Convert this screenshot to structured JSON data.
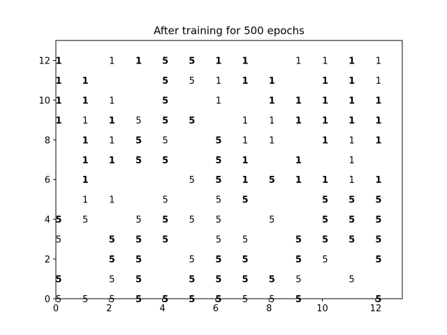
{
  "chart_data": {
    "type": "scatter",
    "title": "After training for 500 epochs",
    "xlabel": "",
    "ylabel": "",
    "xlim": [
      0,
      13
    ],
    "ylim": [
      0,
      13
    ],
    "xticks": [
      "0",
      "2",
      "4",
      "6",
      "8",
      "10",
      "12"
    ],
    "yticks": [
      "0",
      "2",
      "4",
      "6",
      "8",
      "10",
      "12"
    ],
    "grid": false,
    "points": [
      {
        "x": 0,
        "y": 12,
        "label": "1",
        "bold": true
      },
      {
        "x": 2,
        "y": 12,
        "label": "1",
        "bold": false
      },
      {
        "x": 3,
        "y": 12,
        "label": "1",
        "bold": true
      },
      {
        "x": 4,
        "y": 12,
        "label": "5",
        "bold": true
      },
      {
        "x": 5,
        "y": 12,
        "label": "5",
        "bold": true
      },
      {
        "x": 6,
        "y": 12,
        "label": "1",
        "bold": true
      },
      {
        "x": 7,
        "y": 12,
        "label": "1",
        "bold": true
      },
      {
        "x": 9,
        "y": 12,
        "label": "1",
        "bold": false
      },
      {
        "x": 10,
        "y": 12,
        "label": "1",
        "bold": false
      },
      {
        "x": 11,
        "y": 12,
        "label": "1",
        "bold": true
      },
      {
        "x": 12,
        "y": 12,
        "label": "1",
        "bold": false
      },
      {
        "x": 0,
        "y": 11,
        "label": "1",
        "bold": true
      },
      {
        "x": 1,
        "y": 11,
        "label": "1",
        "bold": true
      },
      {
        "x": 4,
        "y": 11,
        "label": "5",
        "bold": true
      },
      {
        "x": 5,
        "y": 11,
        "label": "5",
        "bold": false
      },
      {
        "x": 6,
        "y": 11,
        "label": "1",
        "bold": false
      },
      {
        "x": 7,
        "y": 11,
        "label": "1",
        "bold": true
      },
      {
        "x": 8,
        "y": 11,
        "label": "1",
        "bold": true
      },
      {
        "x": 10,
        "y": 11,
        "label": "1",
        "bold": true
      },
      {
        "x": 11,
        "y": 11,
        "label": "1",
        "bold": true
      },
      {
        "x": 12,
        "y": 11,
        "label": "1",
        "bold": false
      },
      {
        "x": 0,
        "y": 10,
        "label": "1",
        "bold": true
      },
      {
        "x": 1,
        "y": 10,
        "label": "1",
        "bold": true
      },
      {
        "x": 2,
        "y": 10,
        "label": "1",
        "bold": false
      },
      {
        "x": 4,
        "y": 10,
        "label": "5",
        "bold": true
      },
      {
        "x": 6,
        "y": 10,
        "label": "1",
        "bold": false
      },
      {
        "x": 8,
        "y": 10,
        "label": "1",
        "bold": true
      },
      {
        "x": 9,
        "y": 10,
        "label": "1",
        "bold": true
      },
      {
        "x": 10,
        "y": 10,
        "label": "1",
        "bold": true
      },
      {
        "x": 11,
        "y": 10,
        "label": "1",
        "bold": true
      },
      {
        "x": 12,
        "y": 10,
        "label": "1",
        "bold": true
      },
      {
        "x": 0,
        "y": 9,
        "label": "1",
        "bold": true
      },
      {
        "x": 1,
        "y": 9,
        "label": "1",
        "bold": false
      },
      {
        "x": 2,
        "y": 9,
        "label": "1",
        "bold": true
      },
      {
        "x": 3,
        "y": 9,
        "label": "5",
        "bold": false
      },
      {
        "x": 4,
        "y": 9,
        "label": "5",
        "bold": true
      },
      {
        "x": 5,
        "y": 9,
        "label": "5",
        "bold": true
      },
      {
        "x": 7,
        "y": 9,
        "label": "1",
        "bold": false
      },
      {
        "x": 8,
        "y": 9,
        "label": "1",
        "bold": false
      },
      {
        "x": 9,
        "y": 9,
        "label": "1",
        "bold": true
      },
      {
        "x": 10,
        "y": 9,
        "label": "1",
        "bold": true
      },
      {
        "x": 11,
        "y": 9,
        "label": "1",
        "bold": true
      },
      {
        "x": 12,
        "y": 9,
        "label": "1",
        "bold": true
      },
      {
        "x": 1,
        "y": 8,
        "label": "1",
        "bold": true
      },
      {
        "x": 2,
        "y": 8,
        "label": "1",
        "bold": false
      },
      {
        "x": 3,
        "y": 8,
        "label": "5",
        "bold": true
      },
      {
        "x": 4,
        "y": 8,
        "label": "5",
        "bold": false
      },
      {
        "x": 6,
        "y": 8,
        "label": "5",
        "bold": true
      },
      {
        "x": 7,
        "y": 8,
        "label": "1",
        "bold": false
      },
      {
        "x": 8,
        "y": 8,
        "label": "1",
        "bold": false
      },
      {
        "x": 10,
        "y": 8,
        "label": "1",
        "bold": true
      },
      {
        "x": 11,
        "y": 8,
        "label": "1",
        "bold": false
      },
      {
        "x": 12,
        "y": 8,
        "label": "1",
        "bold": true
      },
      {
        "x": 1,
        "y": 7,
        "label": "1",
        "bold": true
      },
      {
        "x": 2,
        "y": 7,
        "label": "1",
        "bold": true
      },
      {
        "x": 3,
        "y": 7,
        "label": "5",
        "bold": true
      },
      {
        "x": 4,
        "y": 7,
        "label": "5",
        "bold": true
      },
      {
        "x": 6,
        "y": 7,
        "label": "5",
        "bold": true
      },
      {
        "x": 7,
        "y": 7,
        "label": "1",
        "bold": true
      },
      {
        "x": 9,
        "y": 7,
        "label": "1",
        "bold": true
      },
      {
        "x": 11,
        "y": 7,
        "label": "1",
        "bold": false
      },
      {
        "x": 1,
        "y": 6,
        "label": "1",
        "bold": true
      },
      {
        "x": 5,
        "y": 6,
        "label": "5",
        "bold": false
      },
      {
        "x": 6,
        "y": 6,
        "label": "5",
        "bold": true
      },
      {
        "x": 7,
        "y": 6,
        "label": "1",
        "bold": true
      },
      {
        "x": 8,
        "y": 6,
        "label": "5",
        "bold": true
      },
      {
        "x": 9,
        "y": 6,
        "label": "1",
        "bold": true
      },
      {
        "x": 10,
        "y": 6,
        "label": "1",
        "bold": true
      },
      {
        "x": 11,
        "y": 6,
        "label": "1",
        "bold": false
      },
      {
        "x": 12,
        "y": 6,
        "label": "1",
        "bold": true
      },
      {
        "x": 1,
        "y": 5,
        "label": "1",
        "bold": false
      },
      {
        "x": 2,
        "y": 5,
        "label": "1",
        "bold": false
      },
      {
        "x": 4,
        "y": 5,
        "label": "5",
        "bold": false
      },
      {
        "x": 6,
        "y": 5,
        "label": "5",
        "bold": false
      },
      {
        "x": 7,
        "y": 5,
        "label": "5",
        "bold": true
      },
      {
        "x": 10,
        "y": 5,
        "label": "5",
        "bold": true
      },
      {
        "x": 11,
        "y": 5,
        "label": "5",
        "bold": true
      },
      {
        "x": 12,
        "y": 5,
        "label": "5",
        "bold": true
      },
      {
        "x": 0,
        "y": 4,
        "label": "5",
        "bold": true
      },
      {
        "x": 1,
        "y": 4,
        "label": "5",
        "bold": false
      },
      {
        "x": 3,
        "y": 4,
        "label": "5",
        "bold": false
      },
      {
        "x": 4,
        "y": 4,
        "label": "5",
        "bold": true
      },
      {
        "x": 5,
        "y": 4,
        "label": "5",
        "bold": false
      },
      {
        "x": 6,
        "y": 4,
        "label": "5",
        "bold": false
      },
      {
        "x": 8,
        "y": 4,
        "label": "5",
        "bold": false
      },
      {
        "x": 10,
        "y": 4,
        "label": "5",
        "bold": true
      },
      {
        "x": 11,
        "y": 4,
        "label": "5",
        "bold": true
      },
      {
        "x": 12,
        "y": 4,
        "label": "5",
        "bold": true
      },
      {
        "x": 0,
        "y": 3,
        "label": "5",
        "bold": false
      },
      {
        "x": 2,
        "y": 3,
        "label": "5",
        "bold": true
      },
      {
        "x": 3,
        "y": 3,
        "label": "5",
        "bold": true
      },
      {
        "x": 4,
        "y": 3,
        "label": "5",
        "bold": true
      },
      {
        "x": 6,
        "y": 3,
        "label": "5",
        "bold": false
      },
      {
        "x": 7,
        "y": 3,
        "label": "5",
        "bold": false
      },
      {
        "x": 9,
        "y": 3,
        "label": "5",
        "bold": true
      },
      {
        "x": 10,
        "y": 3,
        "label": "5",
        "bold": true
      },
      {
        "x": 11,
        "y": 3,
        "label": "5",
        "bold": true
      },
      {
        "x": 12,
        "y": 3,
        "label": "5",
        "bold": true
      },
      {
        "x": 2,
        "y": 2,
        "label": "5",
        "bold": true
      },
      {
        "x": 3,
        "y": 2,
        "label": "5",
        "bold": true
      },
      {
        "x": 5,
        "y": 2,
        "label": "5",
        "bold": false
      },
      {
        "x": 6,
        "y": 2,
        "label": "5",
        "bold": true
      },
      {
        "x": 7,
        "y": 2,
        "label": "5",
        "bold": true
      },
      {
        "x": 9,
        "y": 2,
        "label": "5",
        "bold": true
      },
      {
        "x": 10,
        "y": 2,
        "label": "5",
        "bold": false
      },
      {
        "x": 12,
        "y": 2,
        "label": "5",
        "bold": true
      },
      {
        "x": 0,
        "y": 1,
        "label": "5",
        "bold": true
      },
      {
        "x": 2,
        "y": 1,
        "label": "5",
        "bold": false
      },
      {
        "x": 3,
        "y": 1,
        "label": "5",
        "bold": true
      },
      {
        "x": 5,
        "y": 1,
        "label": "5",
        "bold": true
      },
      {
        "x": 6,
        "y": 1,
        "label": "5",
        "bold": true
      },
      {
        "x": 7,
        "y": 1,
        "label": "5",
        "bold": true
      },
      {
        "x": 8,
        "y": 1,
        "label": "5",
        "bold": true
      },
      {
        "x": 9,
        "y": 1,
        "label": "5",
        "bold": false
      },
      {
        "x": 11,
        "y": 1,
        "label": "5",
        "bold": false
      },
      {
        "x": 0,
        "y": 0,
        "label": "5",
        "bold": false
      },
      {
        "x": 1,
        "y": 0,
        "label": "5",
        "bold": false
      },
      {
        "x": 2,
        "y": 0,
        "label": "5",
        "bold": false
      },
      {
        "x": 3,
        "y": 0,
        "label": "5",
        "bold": true
      },
      {
        "x": 4,
        "y": 0,
        "label": "5",
        "bold": true
      },
      {
        "x": 5,
        "y": 0,
        "label": "5",
        "bold": true
      },
      {
        "x": 6,
        "y": 0,
        "label": "5",
        "bold": true
      },
      {
        "x": 7,
        "y": 0,
        "label": "5",
        "bold": false
      },
      {
        "x": 8,
        "y": 0,
        "label": "5",
        "bold": false
      },
      {
        "x": 9,
        "y": 0,
        "label": "5",
        "bold": true
      },
      {
        "x": 12,
        "y": 0,
        "label": "5",
        "bold": true
      }
    ]
  }
}
